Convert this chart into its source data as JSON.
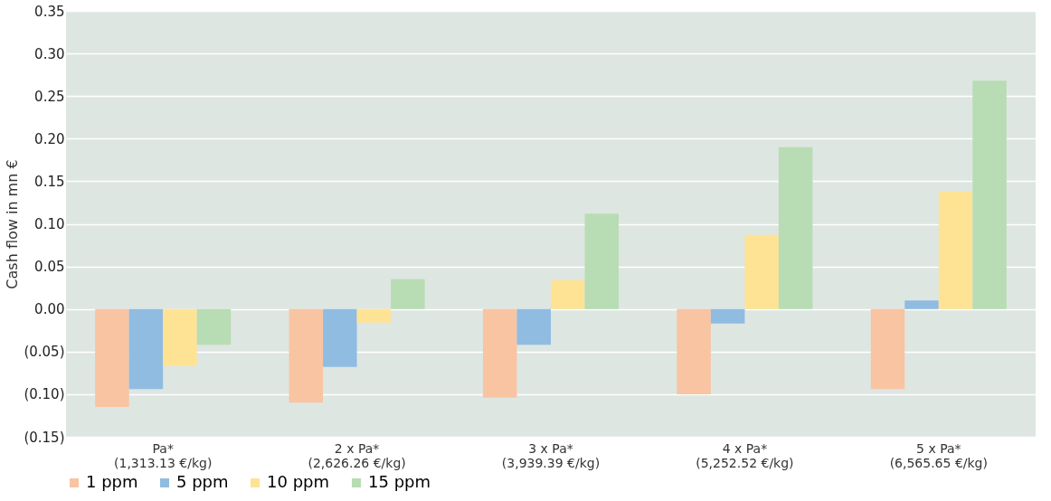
{
  "chart_data": {
    "type": "bar",
    "ylabel": "Cash flow in mn €",
    "categories": [
      "Pa*\n(1,313.13 €/kg)",
      "2 x Pa*\n(2,626.26 €/kg)",
      "3 x Pa*\n(3,939.39 €/kg)",
      "4 x Pa*\n(5,252.52 €/kg)",
      "5 x Pa*\n(6,565.65 €/kg)"
    ],
    "series": [
      {
        "name": "1 ppm",
        "color": "#f8c4a2",
        "values": [
          -0.115,
          -0.11,
          -0.104,
          -0.1,
          -0.094
        ]
      },
      {
        "name": "5 ppm",
        "color": "#90bce2",
        "values": [
          -0.094,
          -0.068,
          -0.042,
          -0.017,
          0.01
        ]
      },
      {
        "name": "10 ppm",
        "color": "#fee394",
        "values": [
          -0.067,
          -0.016,
          0.034,
          0.087,
          0.138
        ]
      },
      {
        "name": "15 ppm",
        "color": "#b8dcb4",
        "values": [
          -0.042,
          0.035,
          0.112,
          0.19,
          0.268
        ]
      }
    ],
    "ylim": [
      -0.15,
      0.35
    ],
    "yticks": [
      {
        "value": -0.15,
        "label": "(0.15)"
      },
      {
        "value": -0.1,
        "label": "(0.10)"
      },
      {
        "value": -0.05,
        "label": "(0.05)"
      },
      {
        "value": 0,
        "label": "0.00"
      },
      {
        "value": 0.05,
        "label": "0.05"
      },
      {
        "value": 0.1,
        "label": "0.10"
      },
      {
        "value": 0.15,
        "label": "0.15"
      },
      {
        "value": 0.2,
        "label": "0.20"
      },
      {
        "value": 0.25,
        "label": "0.25"
      },
      {
        "value": 0.3,
        "label": "0.30"
      },
      {
        "value": 0.35,
        "label": "0.35"
      }
    ],
    "grid": "y",
    "legend": "bottom"
  }
}
